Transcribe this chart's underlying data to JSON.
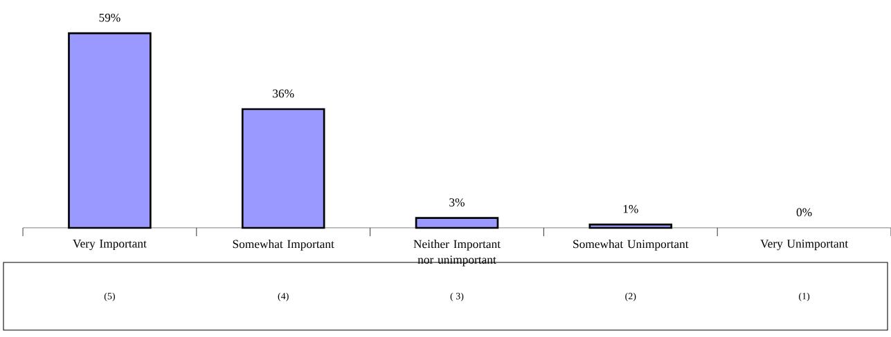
{
  "chart_data": {
    "type": "bar",
    "categories": [
      "Very Important",
      "Somewhat Important",
      "Neither Important nor unimportant",
      "Somewhat Unimportant",
      "Very Unimportant"
    ],
    "values": [
      59,
      36,
      3,
      1,
      0
    ],
    "value_labels": [
      "59%",
      "36%",
      "3%",
      "1%",
      "0%"
    ],
    "color": "#9999ff",
    "annotations": [
      "(5)",
      "(4)",
      "( 3)",
      "(2)",
      "(1)"
    ]
  }
}
